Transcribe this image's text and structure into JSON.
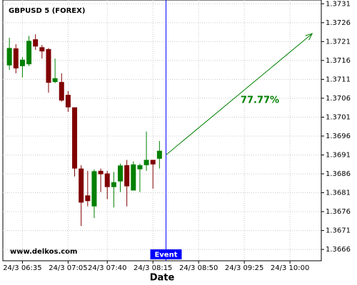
{
  "chart_data": {
    "type": "candlestick",
    "title": "GBPUSD 5 (FOREX)",
    "xlabel": "Date",
    "watermark": "www.delkos.com",
    "x": [
      385,
      390,
      395,
      400,
      405,
      410,
      415,
      420,
      425,
      430,
      435,
      440,
      445,
      450,
      455,
      460,
      465,
      470,
      475,
      480,
      485,
      490,
      495,
      500
    ],
    "open": [
      1.37147,
      1.37192,
      1.37145,
      1.3715,
      1.37216,
      1.37195,
      1.3719,
      1.37103,
      1.37103,
      1.37069,
      1.37036,
      1.36874,
      1.36803,
      1.36774,
      1.36868,
      1.36861,
      1.36825,
      1.3684,
      1.36883,
      1.36816,
      1.36872,
      1.36883,
      1.36897,
      1.369
    ],
    "high": [
      1.3722,
      1.37203,
      1.37169,
      1.37225,
      1.37229,
      1.37201,
      1.37193,
      1.37165,
      1.37126,
      1.37079,
      1.37036,
      1.36883,
      1.36868,
      1.36872,
      1.36874,
      1.36868,
      1.36865,
      1.36887,
      1.36897,
      1.36893,
      1.36887,
      1.36972,
      1.36897,
      1.36947
    ],
    "low": [
      1.37135,
      1.37126,
      1.37115,
      1.37145,
      1.37188,
      1.37165,
      1.37075,
      1.371,
      1.37051,
      1.37024,
      1.36853,
      1.36722,
      1.36774,
      1.36743,
      1.36812,
      1.36793,
      1.36771,
      1.36812,
      1.36774,
      1.36816,
      1.36812,
      1.36868,
      1.36821,
      1.36874
    ],
    "close": [
      1.37193,
      1.37139,
      1.37162,
      1.37212,
      1.37197,
      1.37184,
      1.37101,
      1.37113,
      1.37054,
      1.37036,
      1.36874,
      1.36784,
      1.36788,
      1.36867,
      1.36859,
      1.36825,
      1.36838,
      1.36882,
      1.36827,
      1.36885,
      1.36883,
      1.36897,
      1.36885,
      1.36921
    ],
    "up_color": "#008000",
    "down_color": "#800000",
    "xlim": [
      380,
      624
    ],
    "ylim": [
      1.3663,
      1.3732
    ],
    "xticks": [
      {
        "value": 395,
        "label": "24/3 06:35"
      },
      {
        "value": 430,
        "label": "24/3 07:05"
      },
      {
        "value": 460,
        "label": "24/3 07:40"
      },
      {
        "value": 495,
        "label": "24/3 08:15"
      },
      {
        "value": 530,
        "label": "24/3 08:50"
      },
      {
        "value": 565,
        "label": "24/3 09:25"
      },
      {
        "value": 600,
        "label": "24/3 10:00"
      }
    ],
    "yticks": [
      1.3731,
      1.3726,
      1.3721,
      1.3716,
      1.3711,
      1.3706,
      1.3701,
      1.3696,
      1.3691,
      1.3686,
      1.3681,
      1.3676,
      1.3671,
      1.3666
    ],
    "grid": true,
    "event": {
      "x": 505,
      "label": "Event",
      "color": "#0000ff"
    },
    "arrow": {
      "x": [
        505,
        617
      ],
      "y": [
        1.3691,
        1.37231
      ],
      "label": "77.77%",
      "color": "#008000"
    }
  }
}
